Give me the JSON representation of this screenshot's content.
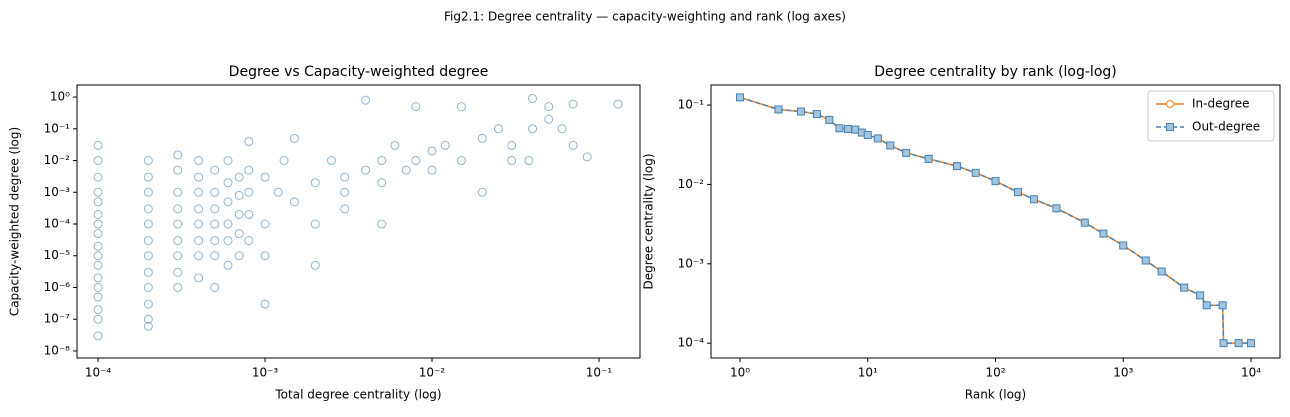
{
  "title": "Fig2.1: Degree centrality — capacity-weighting and rank (log axes)",
  "chart_data": [
    {
      "type": "scatter",
      "title": "Degree vs Capacity-weighted degree",
      "x_label": "Total degree centrality (log)",
      "y_label": "Capacity-weighted degree (log)",
      "xscale": "log",
      "yscale": "log",
      "color": "#4682b4",
      "xlim": [
        7.48e-05,
        0.176
      ],
      "ylim": [
        6e-09,
        2.4
      ],
      "xticks": [
        {
          "value": 0.0001,
          "label": "10⁻⁴"
        },
        {
          "value": 0.001,
          "label": "10⁻³"
        },
        {
          "value": 0.01,
          "label": "10⁻²"
        },
        {
          "value": 0.1,
          "label": "10⁻¹"
        }
      ],
      "yticks": [
        {
          "value": 1e-08,
          "label": "10⁻⁸"
        },
        {
          "value": 1e-07,
          "label": "10⁻⁷"
        },
        {
          "value": 1e-06,
          "label": "10⁻⁶"
        },
        {
          "value": 1e-05,
          "label": "10⁻⁵"
        },
        {
          "value": 0.0001,
          "label": "10⁻⁴"
        },
        {
          "value": 0.001,
          "label": "10⁻³"
        },
        {
          "value": 0.01,
          "label": "10⁻²"
        },
        {
          "value": 0.1,
          "label": "10⁻¹"
        },
        {
          "value": 1,
          "label": "10⁰"
        }
      ],
      "x": [
        0.0001,
        0.0001,
        0.0001,
        0.0001,
        0.0001,
        0.0001,
        0.0001,
        0.0001,
        0.0001,
        0.0001,
        0.0001,
        0.0001,
        0.0001,
        0.0001,
        0.0001,
        0.0001,
        0.0001,
        0.0002,
        0.0002,
        0.0002,
        0.0002,
        0.0002,
        0.0002,
        0.0002,
        0.0002,
        0.0002,
        0.0002,
        0.0002,
        0.0002,
        0.0003,
        0.0003,
        0.0003,
        0.0003,
        0.0003,
        0.0003,
        0.0003,
        0.0003,
        0.0003,
        0.0004,
        0.0004,
        0.0004,
        0.0004,
        0.0004,
        0.0004,
        0.0004,
        0.0004,
        0.0005,
        0.0005,
        0.0005,
        0.0005,
        0.0005,
        0.0005,
        0.0005,
        0.0006,
        0.0006,
        0.0006,
        0.0006,
        0.0006,
        0.0006,
        0.0007,
        0.0007,
        0.0007,
        0.0007,
        0.0007,
        0.0008,
        0.0008,
        0.0008,
        0.0008,
        0.0008,
        0.001,
        0.001,
        0.001,
        0.0012,
        0.0015,
        0.0015,
        0.002,
        0.002,
        0.002,
        0.0025,
        0.003,
        0.003,
        0.003,
        0.004,
        0.004,
        0.005,
        0.005,
        0.005,
        0.006,
        0.007,
        0.008,
        0.008,
        0.01,
        0.01,
        0.012,
        0.015,
        0.015,
        0.02,
        0.02,
        0.025,
        0.03,
        0.03,
        0.04,
        0.04,
        0.05,
        0.05,
        0.06,
        0.07,
        0.07,
        0.085,
        0.13,
        0.038,
        0.001,
        0.0013
      ],
      "y": [
        0.03,
        0.01,
        0.003,
        0.001,
        0.0005,
        0.0002,
        0.0001,
        5e-05,
        2e-05,
        1e-05,
        5e-06,
        2e-06,
        1e-06,
        5e-07,
        2e-07,
        1e-07,
        3e-08,
        0.01,
        0.003,
        0.001,
        0.0003,
        0.0001,
        3e-05,
        1e-05,
        3e-06,
        1e-06,
        3e-07,
        1e-07,
        6e-08,
        0.015,
        0.005,
        0.001,
        0.0003,
        0.0001,
        3e-05,
        1e-05,
        3e-06,
        1e-06,
        0.01,
        0.003,
        0.001,
        0.0003,
        0.0001,
        3e-05,
        1e-05,
        2e-06,
        0.005,
        0.001,
        0.0003,
        0.0001,
        3e-05,
        1e-05,
        1e-06,
        0.01,
        0.002,
        0.0005,
        0.0001,
        3e-05,
        5e-06,
        0.003,
        0.0008,
        0.0002,
        5e-05,
        1e-05,
        0.04,
        0.005,
        0.001,
        0.0002,
        3e-05,
        0.003,
        0.0001,
        3e-07,
        0.001,
        0.0005,
        0.05,
        0.002,
        0.0001,
        5e-06,
        0.01,
        0.003,
        0.001,
        0.0003,
        0.005,
        0.8,
        0.01,
        0.002,
        0.0001,
        0.03,
        0.005,
        0.01,
        0.5,
        0.005,
        0.02,
        0.03,
        0.5,
        0.01,
        0.05,
        0.001,
        0.1,
        0.03,
        0.01,
        0.1,
        0.9,
        0.2,
        0.5,
        0.1,
        0.6,
        0.03,
        0.013,
        0.6,
        0.01,
        1e-05,
        0.01
      ]
    },
    {
      "type": "line",
      "title": "Degree centrality by rank (log-log)",
      "x_label": "Rank (log)",
      "y_label": "Degree centrality (log)",
      "xscale": "log",
      "yscale": "log",
      "legend": "upper right",
      "xlim": [
        0.593,
        16870
      ],
      "ylim": [
        6.5e-05,
        0.179
      ],
      "xticks": [
        {
          "value": 1,
          "label": "10⁰"
        },
        {
          "value": 10,
          "label": "10¹"
        },
        {
          "value": 100,
          "label": "10²"
        },
        {
          "value": 1000,
          "label": "10³"
        },
        {
          "value": 10000,
          "label": "10⁴"
        }
      ],
      "yticks": [
        {
          "value": 0.0001,
          "label": "10⁻⁴"
        },
        {
          "value": 0.001,
          "label": "10⁻³"
        },
        {
          "value": 0.01,
          "label": "10⁻²"
        },
        {
          "value": 0.1,
          "label": "10⁻¹"
        }
      ],
      "x": [
        1,
        2,
        3,
        4,
        5,
        6,
        7,
        8,
        9,
        10,
        12,
        15,
        20,
        30,
        50,
        70,
        100,
        150,
        200,
        300,
        500,
        700,
        1000,
        1500,
        2000,
        3000,
        4000,
        4500,
        6000,
        6100,
        8000,
        10000
      ],
      "series": [
        {
          "name": "In-degree",
          "color": "#ff7f0e",
          "marker": "circle",
          "dash": "solid",
          "values": [
            0.125,
            0.088,
            0.083,
            0.077,
            0.065,
            0.051,
            0.05,
            0.049,
            0.045,
            0.042,
            0.038,
            0.031,
            0.025,
            0.021,
            0.017,
            0.014,
            0.011,
            0.008,
            0.0065,
            0.005,
            0.0033,
            0.0024,
            0.0017,
            0.0011,
            0.0008,
            0.0005,
            0.0004,
            0.0003,
            0.0003,
            0.0001,
            0.0001,
            0.0001
          ]
        },
        {
          "name": "Out-degree",
          "color": "#4682b4",
          "marker": "square",
          "dash": "dashed",
          "values": [
            0.125,
            0.088,
            0.083,
            0.077,
            0.065,
            0.051,
            0.05,
            0.049,
            0.045,
            0.042,
            0.038,
            0.031,
            0.025,
            0.021,
            0.017,
            0.014,
            0.011,
            0.008,
            0.0065,
            0.005,
            0.0033,
            0.0024,
            0.0017,
            0.0011,
            0.0008,
            0.0005,
            0.0004,
            0.0003,
            0.0003,
            0.0001,
            0.0001,
            0.0001
          ]
        }
      ]
    }
  ]
}
